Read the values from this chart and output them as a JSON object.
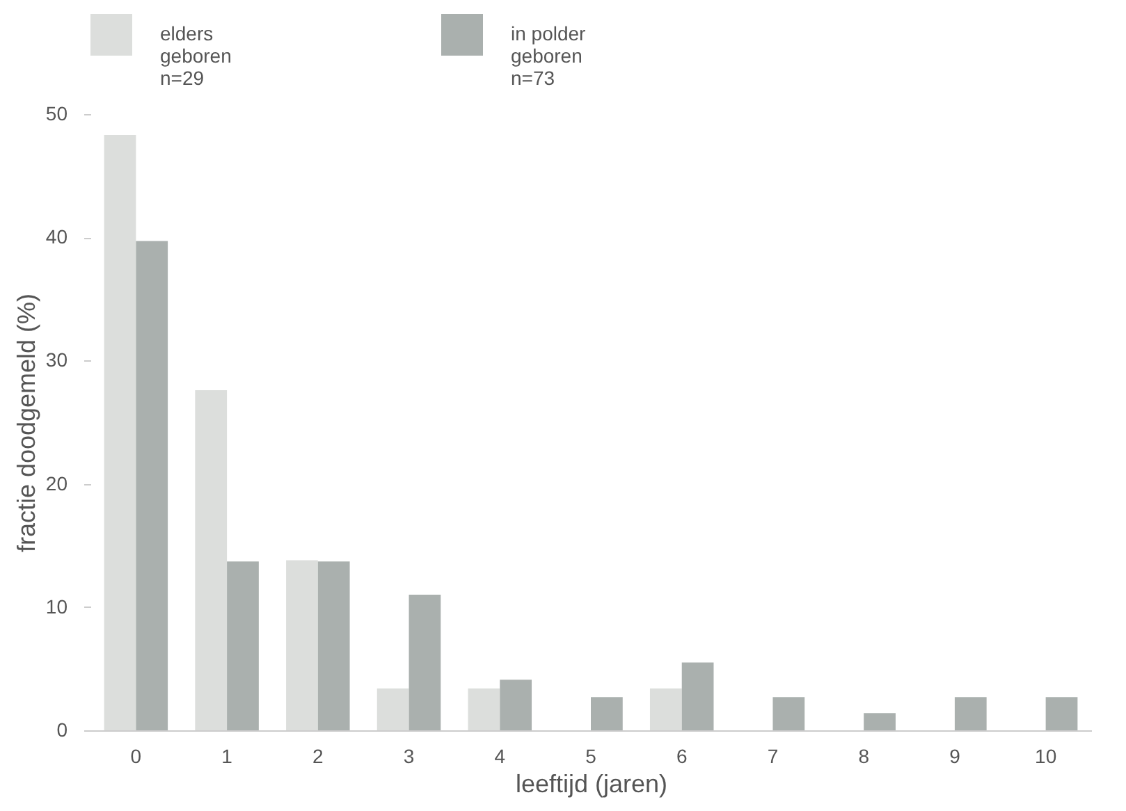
{
  "chart_data": {
    "type": "bar",
    "xlabel": "leeftijd (jaren)",
    "ylabel": "fractie doodgemeld (%)",
    "categories": [
      "0",
      "1",
      "2",
      "3",
      "4",
      "5",
      "6",
      "7",
      "8",
      "9",
      "10"
    ],
    "series": [
      {
        "name": "elders\ngeboren\nn=29",
        "color": "#dcdedc",
        "values": [
          48.3,
          27.6,
          13.8,
          3.4,
          3.4,
          0,
          3.4,
          0,
          0,
          0,
          0
        ]
      },
      {
        "name": "in polder\ngeboren\nn=73",
        "color": "#aab0ae",
        "values": [
          39.7,
          13.7,
          13.7,
          11.0,
          4.1,
          2.7,
          5.5,
          2.7,
          1.4,
          2.7,
          2.7
        ]
      }
    ],
    "ylim": [
      0,
      50
    ],
    "yticks": [
      0,
      10,
      20,
      30,
      40,
      50
    ],
    "grid": false,
    "legend": "top"
  }
}
